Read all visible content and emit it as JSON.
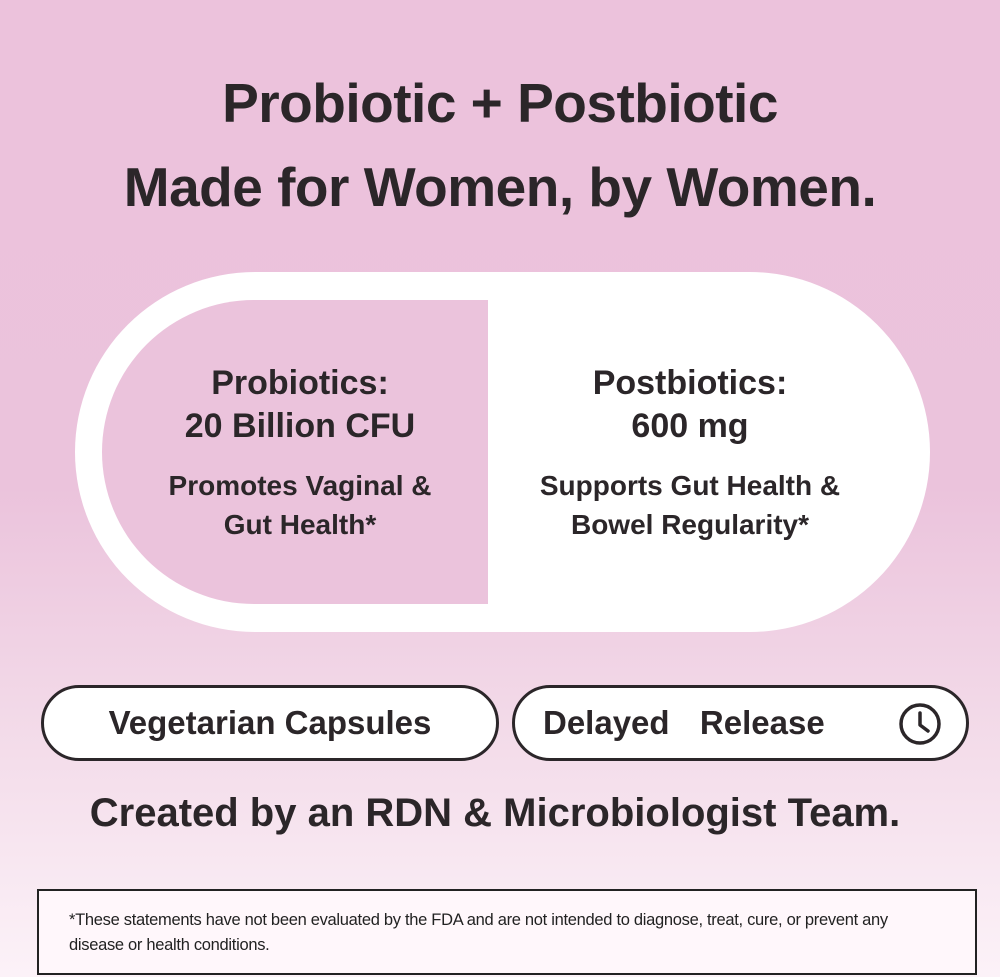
{
  "headline": {
    "line1": "Probiotic + Postbiotic",
    "line2": "Made for Women, by Women."
  },
  "capsule": {
    "left": {
      "heading_line1": "Probiotics:",
      "heading_line2": "20 Billion CFU",
      "sub_line1": "Promotes Vaginal &",
      "sub_line2": "Gut Health*"
    },
    "right": {
      "heading_line1": "Postbiotics:",
      "heading_line2": "600 mg",
      "sub_line1": "Supports Gut Health &",
      "sub_line2": "Bowel Regularity*"
    }
  },
  "badges": [
    {
      "label": "Vegetarian Capsules"
    },
    {
      "label": "Delayed  Release",
      "icon": "clock-icon"
    }
  ],
  "created_by": "Created by an RDN & Microbiologist Team.",
  "disclaimer": "*These statements have not been evaluated by the FDA and are not intended to diagnose, treat, cure, or prevent any disease or health conditions.",
  "colors": {
    "background": "#ebc3dc",
    "text": "#2b2629",
    "capsule": "#ffffff"
  }
}
